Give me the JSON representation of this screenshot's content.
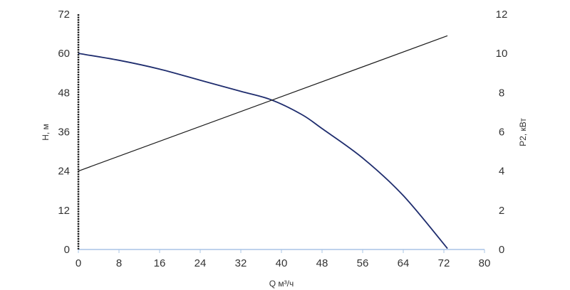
{
  "chart_data": {
    "type": "line",
    "xlabel": "Q м³/ч",
    "ylabel_left": "H, м",
    "ylabel_right": "P2, кВт",
    "xlim": [
      0,
      80
    ],
    "ylim_left": [
      0,
      72
    ],
    "ylim_right": [
      0,
      12
    ],
    "x_ticks": [
      0,
      8,
      16,
      24,
      32,
      40,
      48,
      56,
      64,
      72,
      80
    ],
    "y_left_ticks": [
      0,
      12,
      24,
      36,
      48,
      60,
      72
    ],
    "y_right_ticks": [
      0,
      2,
      4,
      6,
      8,
      10,
      12
    ],
    "grid": false,
    "series": [
      {
        "axis": "left",
        "color": "#1f2d6e",
        "x": [
          0,
          8,
          16,
          24,
          32,
          38,
          44,
          48,
          56,
          64,
          72.7
        ],
        "y": [
          60,
          57.9,
          55.2,
          51.8,
          48.4,
          45.8,
          41.3,
          37,
          28,
          16.5,
          0.3
        ]
      },
      {
        "axis": "right",
        "color": "#1a1a1a",
        "x": [
          0,
          72.7
        ],
        "y": [
          4.0,
          10.9
        ]
      }
    ]
  }
}
